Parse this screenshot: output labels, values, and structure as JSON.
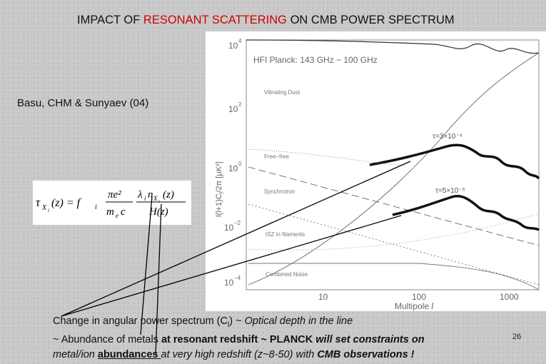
{
  "slide": {
    "title_prefix": "IMPACT OF ",
    "title_highlight": "RESONANT SCATTERING",
    "title_suffix": " ON CMB POWER SPECTRUM",
    "citation": "Basu, CHM & Sunyaev (04)",
    "slide_number": "26",
    "colors": {
      "highlight": "#d00000",
      "background": "#c8c8c8"
    }
  },
  "formula": {
    "lhs": "τ",
    "lhs_sub": "X",
    "lhs_subsub": "i",
    "arg": "(z) = f",
    "f_sub": "i",
    "frac1_num": "πe²",
    "frac1_den": "m",
    "frac1_den_sub": "e",
    "frac1_den_c": "c",
    "frac2_num_a": "λ",
    "frac2_num_a_sub": "i",
    "frac2_num_b": "n",
    "frac2_num_b_sub": "X",
    "frac2_num_b_subsub": "i",
    "frac2_num_c": "(z)",
    "frac2_den": "H(z)"
  },
  "plot": {
    "panel_label": "HFI Planck: 143 GHz − 100 GHz",
    "ylabel": "l(l+1)C",
    "ylabel_sub": "l",
    "ylabel_rest": "/2π [μK²]",
    "xlabel": "Multipole",
    "xlabel_var": "l",
    "y_ticks": [
      {
        "base": "10",
        "exp": "4"
      },
      {
        "base": "10",
        "exp": "2"
      },
      {
        "base": "10",
        "exp": "0"
      },
      {
        "base": "10",
        "exp": "−2"
      },
      {
        "base": "10",
        "exp": "−4"
      }
    ],
    "x_ticks": [
      "10",
      "100",
      "1000"
    ],
    "curve_labels": {
      "dust": "Vibrating Dust",
      "free_free": "Free−free",
      "synchrotron": "Synchrotron",
      "lsz": "tSZ in filaments",
      "noise": "Combined Noise",
      "tau_high": "τ=3×10⁻⁴",
      "tau_low": "τ=5×10⁻⁶"
    }
  },
  "caption": {
    "line1_a": "Change in angular power spectrum (C",
    "line1_sub": "l",
    "line1_b": ")  ~ ",
    "line1_it": "Optical depth in the line",
    "line2_a": "~ Abundance of metals ",
    "line2_b": "at resonant redshift ~ PLANCK ",
    "line2_bi": "will set constraints on",
    "line3_it1": "metal/ion ",
    "line3_bu": "abundances ",
    "line3_it2": "at very high redshift (z~8-50) with ",
    "line3_bi": "CMB observations !"
  }
}
